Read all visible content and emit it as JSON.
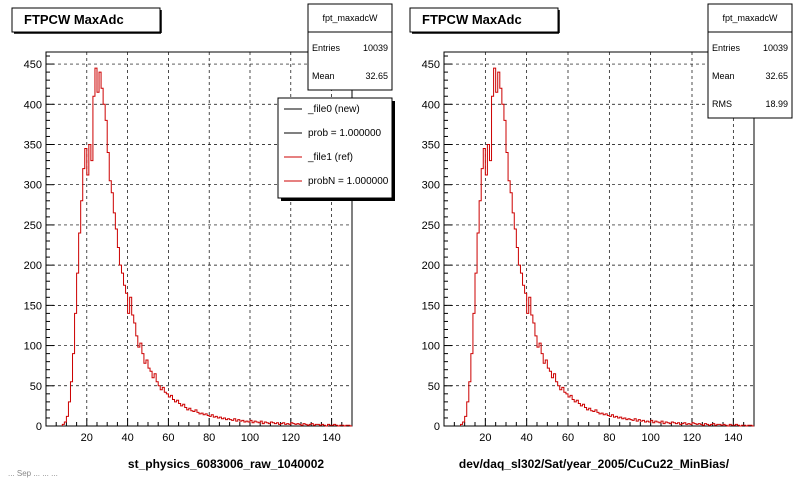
{
  "panels": [
    {
      "title": "FTPCW MaxAdc",
      "xlabel": "st_physics_6083006_raw_1040002",
      "stats": {
        "name": "fpt_maxadcW",
        "rows": [
          [
            "Entries",
            "10039"
          ],
          [
            "Mean",
            "32.65"
          ]
        ]
      },
      "legend": [
        {
          "label": "_file0 (new)",
          "color": "#000000"
        },
        {
          "label": "prob = 1.000000",
          "color": "#000000"
        },
        {
          "label": "_file1 (ref)",
          "color": "#cc0000"
        },
        {
          "label": "probN = 1.000000",
          "color": "#cc0000"
        }
      ]
    },
    {
      "title": "FTPCW MaxAdc",
      "xlabel": "dev/daq_sl302/Sat/year_2005/CuCu22_MinBias/",
      "stats": {
        "name": "fpt_maxadcW",
        "rows": [
          [
            "Entries",
            "10039"
          ],
          [
            "Mean",
            "32.65"
          ],
          [
            "RMS",
            "18.99"
          ]
        ]
      },
      "legend": []
    }
  ],
  "footer": "... Sep ... ... ...",
  "chart_data": [
    {
      "type": "line",
      "title": "FTPCW MaxAdc",
      "xlabel": "st_physics_6083006_raw_1040002",
      "xlim": [
        0,
        150
      ],
      "ylim": [
        0,
        465
      ],
      "xticks": [
        20,
        40,
        60,
        80,
        100,
        120,
        140
      ],
      "yticks": [
        0,
        50,
        100,
        150,
        200,
        250,
        300,
        350,
        400,
        450
      ],
      "grid": true,
      "series": [
        {
          "name": "_file1 (ref)",
          "color": "#cc0000",
          "x": [
            8,
            9,
            10,
            11,
            12,
            13,
            14,
            15,
            16,
            17,
            18,
            19,
            20,
            21,
            22,
            23,
            24,
            25,
            26,
            27,
            28,
            29,
            30,
            31,
            32,
            33,
            34,
            35,
            36,
            37,
            38,
            39,
            40,
            41,
            42,
            43,
            44,
            45,
            46,
            47,
            48,
            49,
            50,
            51,
            52,
            53,
            54,
            55,
            56,
            57,
            58,
            59,
            60,
            61,
            62,
            63,
            64,
            65,
            66,
            67,
            68,
            69,
            70,
            71,
            72,
            73,
            74,
            75,
            76,
            77,
            78,
            79,
            80,
            81,
            82,
            83,
            84,
            85,
            86,
            87,
            88,
            89,
            90,
            91,
            92,
            93,
            94,
            95,
            96,
            97,
            98,
            99,
            100,
            101,
            102,
            103,
            104,
            105,
            106,
            107,
            108,
            109,
            110,
            111,
            112,
            113,
            114,
            115,
            116,
            117,
            118,
            119,
            120,
            121,
            122,
            123,
            124,
            125,
            126,
            127,
            128,
            129,
            130,
            131,
            132,
            133,
            134,
            135,
            136,
            137,
            138,
            139,
            140,
            141,
            142,
            143,
            144,
            145,
            146,
            147,
            148,
            149
          ],
          "y": [
            2,
            5,
            12,
            30,
            55,
            90,
            140,
            190,
            240,
            280,
            320,
            345,
            312,
            350,
            330,
            410,
            445,
            415,
            440,
            420,
            400,
            380,
            340,
            305,
            290,
            265,
            245,
            222,
            200,
            190,
            175,
            165,
            140,
            160,
            138,
            128,
            112,
            98,
            103,
            90,
            78,
            82,
            72,
            68,
            60,
            65,
            55,
            50,
            45,
            48,
            42,
            40,
            36,
            38,
            33,
            30,
            32,
            28,
            25,
            27,
            23,
            20,
            22,
            19,
            18,
            20,
            17,
            15,
            16,
            14,
            15,
            13,
            12,
            14,
            11,
            12,
            10,
            11,
            9,
            10,
            8,
            9,
            8,
            7,
            9,
            6,
            8,
            6,
            7,
            5,
            6,
            5,
            7,
            4,
            6,
            5,
            4,
            6,
            3,
            5,
            4,
            3,
            5,
            4,
            3,
            4,
            2,
            3,
            4,
            2,
            3,
            2,
            4,
            3,
            2,
            3,
            2,
            1,
            3,
            2,
            1,
            2,
            3,
            1,
            2,
            2,
            1,
            2,
            1,
            0,
            2,
            1,
            1,
            2,
            1,
            0,
            1,
            1,
            0,
            1,
            1,
            0
          ]
        }
      ]
    },
    {
      "type": "line",
      "title": "FTPCW MaxAdc",
      "xlabel": "dev/daq_sl302/Sat/year_2005/CuCu22_MinBias/",
      "xlim": [
        0,
        150
      ],
      "ylim": [
        0,
        465
      ],
      "xticks": [
        20,
        40,
        60,
        80,
        100,
        120,
        140
      ],
      "yticks": [
        0,
        50,
        100,
        150,
        200,
        250,
        300,
        350,
        400,
        450
      ],
      "grid": true,
      "series": [
        {
          "name": "",
          "color": "#cc0000",
          "x": [
            8,
            9,
            10,
            11,
            12,
            13,
            14,
            15,
            16,
            17,
            18,
            19,
            20,
            21,
            22,
            23,
            24,
            25,
            26,
            27,
            28,
            29,
            30,
            31,
            32,
            33,
            34,
            35,
            36,
            37,
            38,
            39,
            40,
            41,
            42,
            43,
            44,
            45,
            46,
            47,
            48,
            49,
            50,
            51,
            52,
            53,
            54,
            55,
            56,
            57,
            58,
            59,
            60,
            61,
            62,
            63,
            64,
            65,
            66,
            67,
            68,
            69,
            70,
            71,
            72,
            73,
            74,
            75,
            76,
            77,
            78,
            79,
            80,
            81,
            82,
            83,
            84,
            85,
            86,
            87,
            88,
            89,
            90,
            91,
            92,
            93,
            94,
            95,
            96,
            97,
            98,
            99,
            100,
            101,
            102,
            103,
            104,
            105,
            106,
            107,
            108,
            109,
            110,
            111,
            112,
            113,
            114,
            115,
            116,
            117,
            118,
            119,
            120,
            121,
            122,
            123,
            124,
            125,
            126,
            127,
            128,
            129,
            130,
            131,
            132,
            133,
            134,
            135,
            136,
            137,
            138,
            139,
            140,
            141,
            142,
            143,
            144,
            145,
            146,
            147,
            148,
            149
          ],
          "y": [
            2,
            5,
            12,
            30,
            55,
            90,
            140,
            190,
            240,
            280,
            320,
            345,
            312,
            350,
            330,
            410,
            445,
            415,
            440,
            420,
            400,
            380,
            340,
            305,
            290,
            265,
            245,
            222,
            200,
            190,
            175,
            165,
            140,
            160,
            138,
            128,
            112,
            98,
            103,
            90,
            78,
            82,
            72,
            68,
            60,
            65,
            55,
            50,
            45,
            48,
            42,
            40,
            36,
            38,
            33,
            30,
            32,
            28,
            25,
            27,
            23,
            20,
            22,
            19,
            18,
            20,
            17,
            15,
            16,
            14,
            15,
            13,
            12,
            14,
            11,
            12,
            10,
            11,
            9,
            10,
            8,
            9,
            8,
            7,
            9,
            6,
            8,
            6,
            7,
            5,
            6,
            5,
            7,
            4,
            6,
            5,
            4,
            6,
            3,
            5,
            4,
            3,
            5,
            4,
            3,
            4,
            2,
            3,
            4,
            2,
            3,
            2,
            4,
            3,
            2,
            3,
            2,
            1,
            3,
            2,
            1,
            2,
            3,
            1,
            2,
            2,
            1,
            2,
            1,
            0,
            2,
            1,
            1,
            2,
            1,
            0,
            1,
            1,
            0,
            1,
            1,
            0
          ]
        }
      ]
    }
  ]
}
